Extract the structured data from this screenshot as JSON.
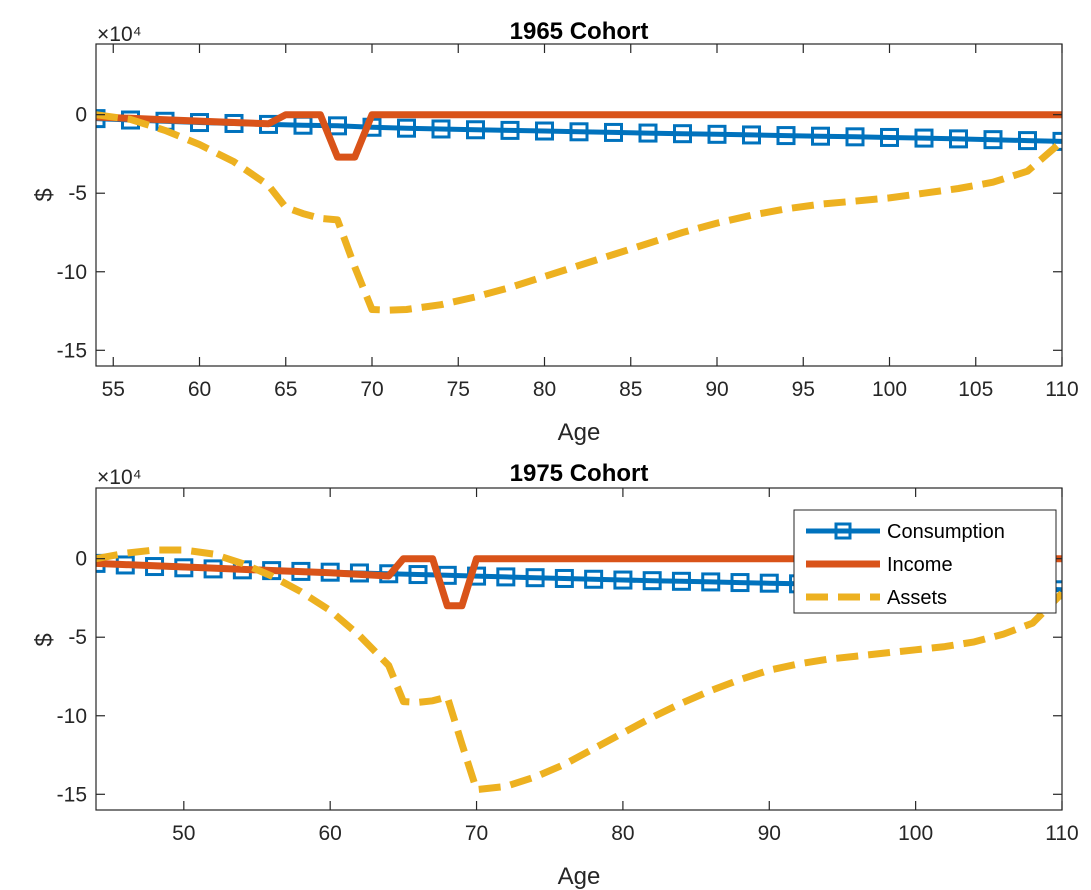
{
  "colors": {
    "consumption": "#0072BD",
    "income": "#D95319",
    "assets": "#EDB120",
    "axis": "#262626",
    "background": "#ffffff"
  },
  "legend": {
    "placement": "top-right",
    "entries": [
      "Consumption",
      "Income",
      "Assets"
    ]
  },
  "chart_data": [
    {
      "type": "line",
      "title": "1965 Cohort",
      "xlabel": "Age",
      "ylabel": "$",
      "y_exponent_label": "×10⁴",
      "xlim": [
        54,
        110
      ],
      "ylim": [
        -160000,
        45000
      ],
      "xticks": [
        55,
        60,
        65,
        70,
        75,
        80,
        85,
        90,
        95,
        100,
        105,
        110
      ],
      "xtick_labels": [
        "55",
        "60",
        "65",
        "70",
        "75",
        "80",
        "85",
        "90",
        "95",
        "100",
        "105",
        "110"
      ],
      "yticks": [
        0,
        -50000,
        -100000,
        -150000
      ],
      "ytick_labels": [
        "0",
        "-5",
        "-10",
        "-15"
      ],
      "grid": false,
      "series": [
        {
          "name": "Consumption",
          "style": "solid-square-markers",
          "x": [
            54,
            56,
            58,
            60,
            62,
            64,
            66,
            68,
            70,
            72,
            74,
            76,
            78,
            80,
            82,
            84,
            86,
            88,
            90,
            92,
            94,
            96,
            98,
            100,
            102,
            104,
            106,
            108,
            110
          ],
          "y": [
            -2500,
            -3400,
            -4200,
            -5000,
            -5600,
            -6200,
            -6700,
            -7100,
            -8000,
            -8600,
            -9100,
            -9600,
            -10000,
            -10400,
            -10900,
            -11300,
            -11700,
            -12100,
            -12500,
            -12900,
            -13300,
            -13700,
            -14100,
            -14500,
            -14900,
            -15400,
            -15900,
            -16500,
            -17000
          ]
        },
        {
          "name": "Income",
          "style": "solid",
          "x": [
            54,
            56,
            58,
            60,
            62,
            64,
            65,
            66,
            67,
            68,
            69,
            70,
            72,
            80,
            90,
            100,
            110
          ],
          "y": [
            -1500,
            -2300,
            -3200,
            -4100,
            -5000,
            -5800,
            0,
            0,
            0,
            -27000,
            -27000,
            0,
            0,
            0,
            0,
            0,
            0
          ]
        },
        {
          "name": "Assets",
          "style": "dashed",
          "x": [
            54,
            56,
            58,
            60,
            62,
            64,
            65,
            66,
            67,
            68,
            69,
            70,
            71,
            72,
            74,
            76,
            78,
            80,
            82,
            84,
            86,
            88,
            90,
            92,
            94,
            96,
            98,
            100,
            102,
            104,
            106,
            108,
            110
          ],
          "y": [
            0,
            -3000,
            -10000,
            -19000,
            -30000,
            -45000,
            -59000,
            -63000,
            -66000,
            -67000,
            -97000,
            -124000,
            -124500,
            -124000,
            -121000,
            -116000,
            -110000,
            -103000,
            -96000,
            -89000,
            -82000,
            -75000,
            -69000,
            -64000,
            -60000,
            -57000,
            -55000,
            -53000,
            -50000,
            -47000,
            -43000,
            -36000,
            -17000
          ]
        }
      ]
    },
    {
      "type": "line",
      "title": "1975 Cohort",
      "xlabel": "Age",
      "ylabel": "$",
      "y_exponent_label": "×10⁴",
      "xlim": [
        44,
        110
      ],
      "ylim": [
        -160000,
        45000
      ],
      "xticks": [
        50,
        60,
        70,
        80,
        90,
        100,
        110
      ],
      "xtick_labels": [
        "50",
        "60",
        "70",
        "80",
        "90",
        "100",
        "110"
      ],
      "yticks": [
        0,
        -50000,
        -100000,
        -150000
      ],
      "ytick_labels": [
        "0",
        "-5",
        "-10",
        "-15"
      ],
      "grid": false,
      "series": [
        {
          "name": "Consumption",
          "style": "solid-square-markers",
          "x": [
            44,
            46,
            48,
            50,
            52,
            54,
            56,
            58,
            60,
            62,
            64,
            66,
            68,
            70,
            72,
            74,
            76,
            78,
            80,
            82,
            84,
            86,
            88,
            90,
            92,
            94,
            96,
            98,
            100,
            102,
            104,
            106,
            108,
            110
          ],
          "y": [
            -3000,
            -4000,
            -5000,
            -5800,
            -6500,
            -7100,
            -7600,
            -8100,
            -8600,
            -9100,
            -9600,
            -10100,
            -10600,
            -11100,
            -11600,
            -12100,
            -12600,
            -13100,
            -13600,
            -14000,
            -14400,
            -14800,
            -15200,
            -15600,
            -16000,
            -16400,
            -16800,
            -17200,
            -17600,
            -18000,
            -18400,
            -18800,
            -19300,
            -19800
          ]
        },
        {
          "name": "Income",
          "style": "solid",
          "x": [
            44,
            48,
            52,
            56,
            60,
            64,
            65,
            66,
            67,
            68,
            69,
            70,
            72,
            80,
            90,
            100,
            110
          ],
          "y": [
            -3000,
            -4500,
            -6000,
            -7500,
            -9000,
            -11000,
            0,
            0,
            0,
            -30000,
            -30000,
            0,
            0,
            0,
            0,
            0,
            0
          ]
        },
        {
          "name": "Assets",
          "style": "dashed",
          "x": [
            44,
            46,
            48,
            50,
            52,
            54,
            56,
            58,
            60,
            62,
            64,
            65,
            66,
            67,
            68,
            69,
            70,
            72,
            74,
            76,
            78,
            80,
            82,
            84,
            86,
            88,
            90,
            92,
            94,
            96,
            98,
            100,
            102,
            104,
            106,
            108,
            110
          ],
          "y": [
            0,
            3500,
            5500,
            5500,
            3000,
            -3000,
            -11000,
            -21000,
            -33000,
            -49000,
            -68000,
            -91000,
            -91500,
            -90500,
            -88000,
            -118000,
            -147000,
            -145000,
            -139000,
            -131000,
            -121000,
            -111000,
            -101000,
            -92000,
            -84000,
            -77000,
            -71000,
            -67000,
            -64000,
            -62000,
            -60000,
            -58000,
            -56000,
            -53000,
            -48000,
            -41000,
            -22000
          ]
        }
      ]
    }
  ]
}
